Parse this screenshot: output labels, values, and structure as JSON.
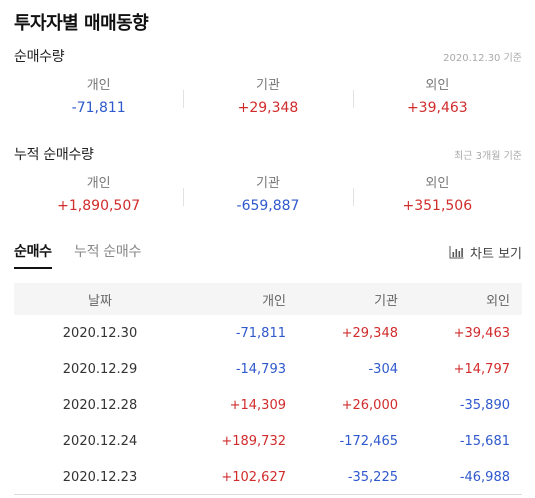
{
  "title": "투자자별 매매동향",
  "net": {
    "label": "순매수량",
    "note": "2020.12.30 기준",
    "items": [
      {
        "label": "개인",
        "value": "-71,811",
        "sign": "neg"
      },
      {
        "label": "기관",
        "value": "+29,348",
        "sign": "pos"
      },
      {
        "label": "외인",
        "value": "+39,463",
        "sign": "pos"
      }
    ]
  },
  "cumulative": {
    "label": "누적 순매수량",
    "note": "최근 3개월 기준",
    "items": [
      {
        "label": "개인",
        "value": "+1,890,507",
        "sign": "pos"
      },
      {
        "label": "기관",
        "value": "-659,887",
        "sign": "neg"
      },
      {
        "label": "외인",
        "value": "+351,506",
        "sign": "pos"
      }
    ]
  },
  "tabs": {
    "net": "순매수",
    "cumulative": "누적 순매수",
    "chart": "차트 보기"
  },
  "table": {
    "headers": [
      "날짜",
      "개인",
      "기관",
      "외인"
    ],
    "rows": [
      [
        "2020.12.30",
        "-71,811",
        "+29,348",
        "+39,463"
      ],
      [
        "2020.12.29",
        "-14,793",
        "-304",
        "+14,797"
      ],
      [
        "2020.12.28",
        "+14,309",
        "+26,000",
        "-35,890"
      ],
      [
        "2020.12.24",
        "+189,732",
        "-172,465",
        "-15,681"
      ],
      [
        "2020.12.23",
        "+102,627",
        "-35,225",
        "-46,988"
      ]
    ]
  },
  "colors": {
    "positive": "#d12c2c",
    "negative": "#2f59cc"
  }
}
